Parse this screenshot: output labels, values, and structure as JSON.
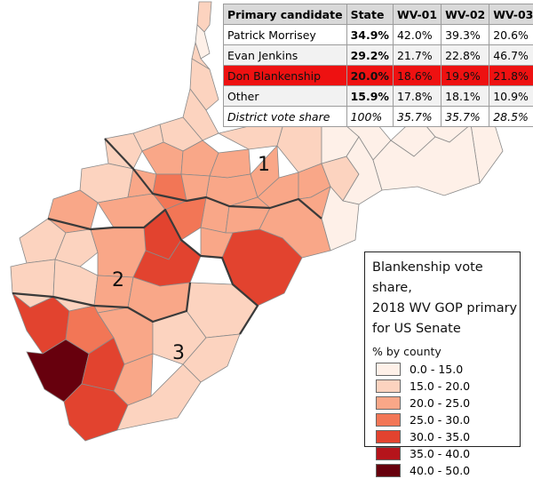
{
  "table": {
    "headers": [
      "Primary candidate",
      "State",
      "WV-01",
      "WV-02",
      "WV-03"
    ],
    "rows": [
      {
        "name": "Patrick Morrisey",
        "state": "34.9%",
        "wv01": "42.0%",
        "wv02": "39.3%",
        "wv03": "20.6%"
      },
      {
        "name": "Evan Jenkins",
        "state": "29.2%",
        "wv01": "21.7%",
        "wv02": "22.8%",
        "wv03": "46.7%"
      },
      {
        "name": "Don Blankenship",
        "state": "20.0%",
        "wv01": "18.6%",
        "wv02": "19.9%",
        "wv03": "21.8%"
      },
      {
        "name": "Other",
        "state": "15.9%",
        "wv01": "17.8%",
        "wv02": "18.1%",
        "wv03": "10.9%"
      },
      {
        "name": "District vote share",
        "state": "100%",
        "wv01": "35.7%",
        "wv02": "35.7%",
        "wv03": "28.5%"
      }
    ],
    "highlight_color": "#ee1111"
  },
  "map": {
    "district_labels": [
      "1",
      "2",
      "3"
    ],
    "border_color": "#3a3a3a"
  },
  "legend": {
    "title_line1": "Blankenship vote share,",
    "title_line2": "2018 WV GOP primary",
    "title_line3": "for US Senate",
    "subtitle": "% by county",
    "classes": [
      {
        "label": "0.0 - 15.0",
        "color": "#fef0e8"
      },
      {
        "label": "15.0 - 20.0",
        "color": "#fcd3bf"
      },
      {
        "label": "20.0 - 25.0",
        "color": "#f9a788"
      },
      {
        "label": "25.0 - 30.0",
        "color": "#f27656"
      },
      {
        "label": "30.0 - 35.0",
        "color": "#e2432f"
      },
      {
        "label": "35.0 - 40.0",
        "color": "#b5141b"
      },
      {
        "label": "40.0 - 50.0",
        "color": "#67000d"
      }
    ]
  }
}
